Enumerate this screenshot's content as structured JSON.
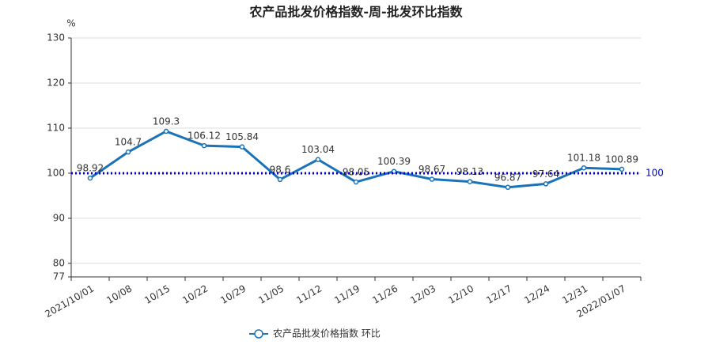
{
  "chart_data": {
    "type": "line",
    "title": "农产品批发价格指数-周-批发环比指数",
    "y_label": "%",
    "categories": [
      "2021/10/01",
      "10/08",
      "10/15",
      "10/22",
      "10/29",
      "11/05",
      "11/12",
      "11/19",
      "11/26",
      "12/03",
      "12/10",
      "12/17",
      "12/24",
      "12/31",
      "2022/01/07"
    ],
    "series": [
      {
        "name": "农产品批发价格指数  环比",
        "color": "#1a73b8",
        "values": [
          98.92,
          104.7,
          109.3,
          106.12,
          105.84,
          98.6,
          103.04,
          98.05,
          100.39,
          98.67,
          98.13,
          96.87,
          97.64,
          101.18,
          100.89
        ]
      }
    ],
    "ylim": [
      77,
      130
    ],
    "yticks": [
      77,
      80,
      90,
      100,
      110,
      120,
      130
    ],
    "grid": true,
    "mark_line": {
      "value": 100,
      "color": "#0000cc"
    }
  }
}
